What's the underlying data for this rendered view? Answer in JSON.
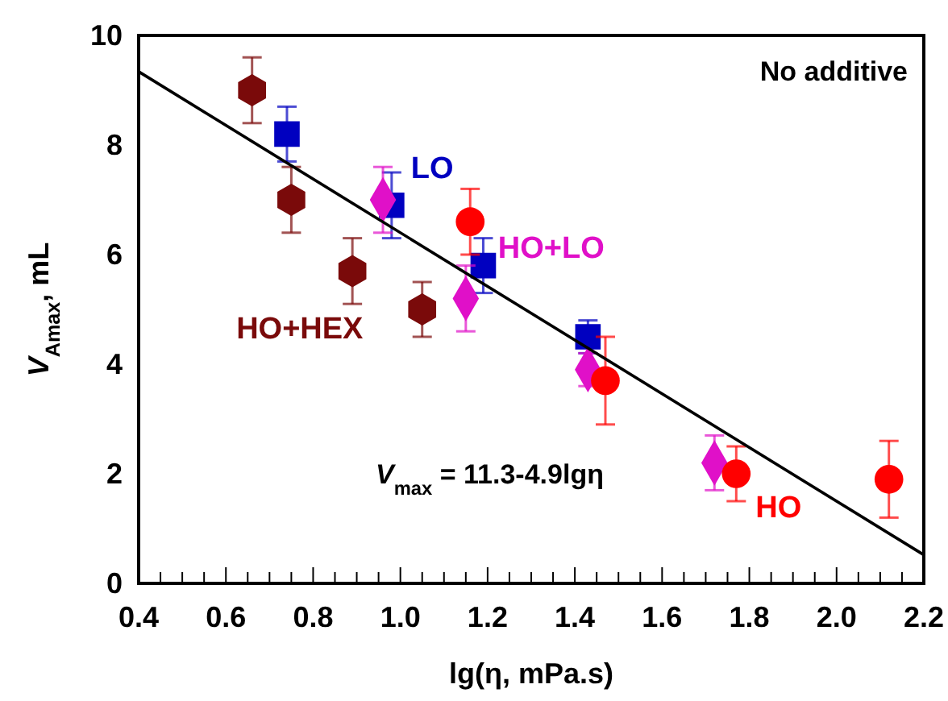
{
  "chart_data": {
    "type": "scatter",
    "xlabel": "lg(η, mPa.s)",
    "ylabel": "V$_{Amax}$, mL",
    "annotations": [
      "No additive",
      "V$_{max}$ = 11.3-4.9lgη"
    ],
    "xlim": [
      0.4,
      2.2
    ],
    "ylim": [
      0,
      10
    ],
    "yticks": [
      0,
      2,
      4,
      6,
      8,
      10
    ],
    "xticks": [
      0.4,
      {
        "value": 0.45,
        "label": null
      },
      {
        "value": 0.5,
        "label": null
      },
      {
        "value": 0.55,
        "label": null
      },
      0.6,
      {
        "value": 0.65,
        "label": null
      },
      {
        "value": 0.7,
        "label": null
      },
      {
        "value": 0.75,
        "label": null
      },
      0.8,
      {
        "value": 0.85,
        "label": null
      },
      {
        "value": 0.9,
        "label": null
      },
      {
        "value": 0.95,
        "label": null
      },
      {
        "value": 1.0,
        "label": "1.0"
      },
      {
        "value": 1.05,
        "label": null
      },
      {
        "value": 1.1,
        "label": null
      },
      {
        "value": 1.15,
        "label": null
      },
      1.2,
      {
        "value": 1.25,
        "label": null
      },
      {
        "value": 1.3,
        "label": null
      },
      {
        "value": 1.35,
        "label": null
      },
      1.4,
      {
        "value": 1.45,
        "label": null
      },
      {
        "value": 1.5,
        "label": null
      },
      {
        "value": 1.55,
        "label": null
      },
      1.6,
      {
        "value": 1.65,
        "label": null
      },
      {
        "value": 1.7,
        "label": null
      },
      {
        "value": 1.75,
        "label": null
      },
      1.8,
      {
        "value": 1.85,
        "label": null
      },
      {
        "value": 1.9,
        "label": null
      },
      {
        "value": 1.95,
        "label": null
      },
      {
        "value": 2.0,
        "label": "2.0"
      },
      {
        "value": 2.05,
        "label": null
      },
      {
        "value": 2.1,
        "label": null
      },
      {
        "value": 2.15,
        "label": null
      },
      2.2
    ],
    "series": [
      {
        "name": "HO+HEX",
        "color": "#7a0a0a",
        "x": [
          0.66,
          0.75,
          0.89,
          1.05
        ],
        "values": [
          9.0,
          7.0,
          5.7,
          5.0
        ],
        "errors": [
          0.6,
          0.6,
          0.6,
          0.5
        ]
      },
      {
        "name": "LO",
        "color": "#0000c0",
        "marker": "square",
        "x": [
          0.74,
          0.98,
          1.19,
          1.43
        ],
        "values": [
          8.2,
          6.9,
          5.8,
          4.5
        ],
        "errors": [
          0.5,
          0.6,
          0.5,
          0.3
        ]
      },
      {
        "name": "HO+LO",
        "color": "#e010c8",
        "marker": "diamond",
        "x": [
          0.96,
          1.15,
          1.43,
          1.72
        ],
        "values": [
          7.0,
          5.2,
          3.9,
          2.2
        ],
        "errors": [
          0.6,
          0.6,
          0.3,
          0.5
        ]
      },
      {
        "name": "HO",
        "color": "#ff0000",
        "marker": "circle",
        "x": [
          1.16,
          1.47,
          1.77,
          2.12
        ],
        "values": [
          6.6,
          3.7,
          2.0,
          1.9
        ],
        "errors": [
          0.6,
          0.8,
          0.5,
          0.7
        ]
      },
      {
        "type": "line",
        "color": "#000000",
        "x": [
          0.4,
          2.2
        ],
        "values": [
          9.34,
          0.52
        ]
      }
    ]
  }
}
